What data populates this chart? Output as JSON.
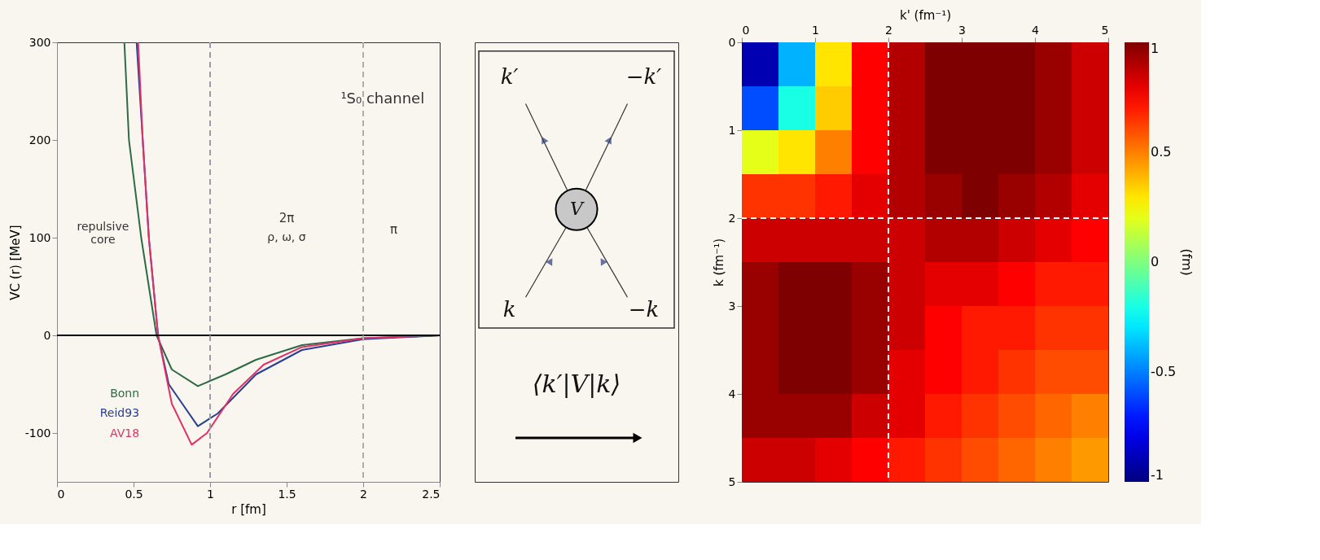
{
  "chart_data": [
    {
      "type": "line",
      "xlabel": "r [fm]",
      "ylabel": "VC (r) [MeV]",
      "xlim": [
        0,
        2.5
      ],
      "xticks": [
        0,
        0.5,
        1,
        1.5,
        2,
        2.5
      ],
      "ylim": [
        -150,
        300
      ],
      "yticks": [
        -100,
        0,
        100,
        200,
        300
      ],
      "marker": "none",
      "line_style": "solid",
      "annotations": [
        "¹S₀ channel",
        "repulsive core",
        "2π",
        "ρ, ω, σ",
        "π"
      ],
      "ref_lines": [
        {
          "axis": "y",
          "value": 0,
          "color": "#000000",
          "line_style": "solid"
        },
        {
          "axis": "x",
          "value": 1,
          "color": "#a09aa8",
          "line_style": "dashed"
        },
        {
          "axis": "x",
          "value": 2,
          "color": "#b0aca8",
          "line_style": "dashed"
        }
      ],
      "series": [
        {
          "name": "Bonn",
          "color": "#2e6a46",
          "x": [
            0.44,
            0.47,
            0.55,
            0.65,
            0.75,
            0.92,
            1.1,
            1.3,
            1.6,
            2,
            2.5
          ],
          "values": [
            300,
            200,
            100,
            0,
            -35,
            -52,
            -40,
            -25,
            -10,
            -3,
            0
          ]
        },
        {
          "name": "Reid93",
          "color": "#2a3f8f",
          "x": [
            0.52,
            0.56,
            0.6,
            0.66,
            0.73,
            0.92,
            1.05,
            1.3,
            1.6,
            2,
            2.5
          ],
          "values": [
            300,
            200,
            100,
            0,
            -50,
            -93,
            -80,
            -40,
            -15,
            -4,
            0
          ]
        },
        {
          "name": "AV18",
          "color": "#e0306a",
          "x": [
            0.53,
            0.56,
            0.6,
            0.66,
            0.75,
            0.88,
            0.98,
            1.15,
            1.35,
            1.6,
            2,
            2.5
          ],
          "values": [
            300,
            200,
            100,
            0,
            -70,
            -112,
            -100,
            -60,
            -30,
            -12,
            -3,
            0
          ]
        }
      ]
    },
    {
      "type": "other",
      "annotations": [
        "k′",
        "−k′",
        "V",
        "k",
        "−k",
        "⟨k′|V|k⟩"
      ]
    },
    {
      "type": "heatmap",
      "xlabel": "k' (fm⁻¹)",
      "ylabel": "k (fm⁻¹)",
      "clabel": "(fm)",
      "xlim": [
        0,
        5
      ],
      "xticks": [
        0,
        1,
        2,
        3,
        4,
        5
      ],
      "ylim": [
        5,
        0
      ],
      "yticks": [
        0,
        1,
        2,
        3,
        4,
        5
      ],
      "clim": [
        -1,
        1
      ],
      "cticks": [
        -1,
        -0.5,
        0,
        0.5,
        1
      ],
      "x": [
        0.25,
        0.75,
        1.25,
        1.75,
        2.25,
        2.75,
        3.25,
        3.75,
        4.25,
        4.75
      ],
      "y": [
        0.25,
        0.75,
        1.25,
        1.75,
        2.25,
        2.75,
        3.25,
        3.75,
        4.25,
        4.75
      ],
      "ref_lines": [
        {
          "axis": "x",
          "value": 2,
          "color": "#ffffff",
          "line_style": "dashed"
        },
        {
          "axis": "y",
          "value": 2,
          "color": "#ffffff",
          "line_style": "dashed"
        }
      ],
      "cells": [
        [
          -0.9,
          -0.4,
          0.3,
          0.75,
          0.9,
          1,
          1,
          1,
          0.95,
          0.85
        ],
        [
          -0.6,
          -0.2,
          0.35,
          0.75,
          0.9,
          1,
          1,
          1,
          0.95,
          0.85
        ],
        [
          0.2,
          0.3,
          0.5,
          0.75,
          0.9,
          1,
          1,
          1,
          0.95,
          0.85
        ],
        [
          0.65,
          0.65,
          0.7,
          0.8,
          0.9,
          0.95,
          1,
          0.95,
          0.9,
          0.8
        ],
        [
          0.85,
          0.85,
          0.85,
          0.85,
          0.85,
          0.9,
          0.9,
          0.85,
          0.8,
          0.75
        ],
        [
          0.95,
          1,
          1,
          0.95,
          0.85,
          0.8,
          0.8,
          0.75,
          0.7,
          0.7
        ],
        [
          0.95,
          1,
          1,
          0.95,
          0.85,
          0.75,
          0.7,
          0.7,
          0.65,
          0.65
        ],
        [
          0.95,
          1,
          1,
          0.95,
          0.8,
          0.75,
          0.7,
          0.65,
          0.6,
          0.6
        ],
        [
          0.95,
          0.95,
          0.95,
          0.85,
          0.8,
          0.7,
          0.65,
          0.6,
          0.55,
          0.5
        ],
        [
          0.85,
          0.85,
          0.8,
          0.75,
          0.7,
          0.65,
          0.6,
          0.55,
          0.5,
          0.45
        ]
      ]
    }
  ]
}
